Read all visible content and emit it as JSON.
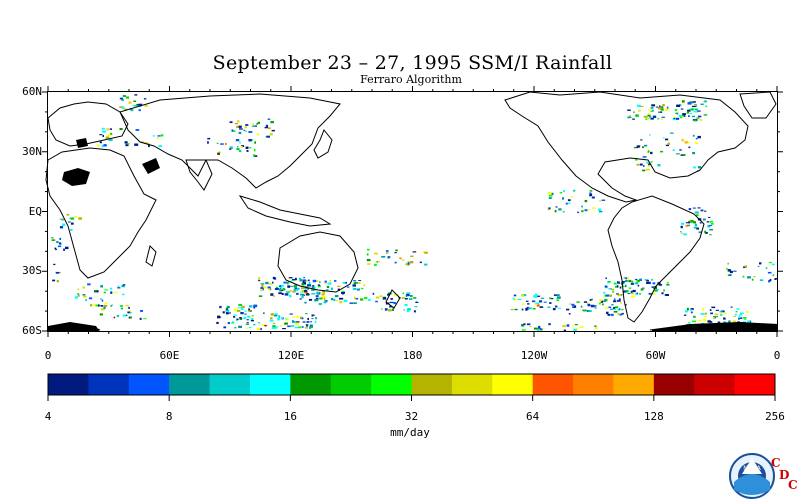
{
  "title": "September 23 – 27, 1995 SSM/I Rainfall",
  "subtitle": "Ferraro Algorithm",
  "lat_labels": [
    "60N",
    "30N",
    "EQ",
    "30S",
    "60S"
  ],
  "lat_values": [
    60,
    30,
    0,
    -30,
    -60
  ],
  "lon_labels": [
    "0",
    "60E",
    "120E",
    "180",
    "120W",
    "60W",
    "0"
  ],
  "lon_values": [
    0,
    60,
    120,
    180,
    240,
    300,
    360
  ],
  "colorbar": {
    "colors": [
      "#001a80",
      "#0033bb",
      "#0055ff",
      "#009999",
      "#00cccc",
      "#00ffff",
      "#009900",
      "#00cc00",
      "#00ff00",
      "#b3b300",
      "#dddd00",
      "#ffff00",
      "#ff5500",
      "#ff8000",
      "#ffaa00",
      "#990000",
      "#cc0000",
      "#ff0000"
    ],
    "tick_labels": [
      "4",
      "8",
      "16",
      "32",
      "64",
      "128",
      "256"
    ],
    "units": "mm/day"
  },
  "logo": {
    "text": "NOAA",
    "cdc_letters": [
      "C",
      "D",
      "C"
    ]
  }
}
